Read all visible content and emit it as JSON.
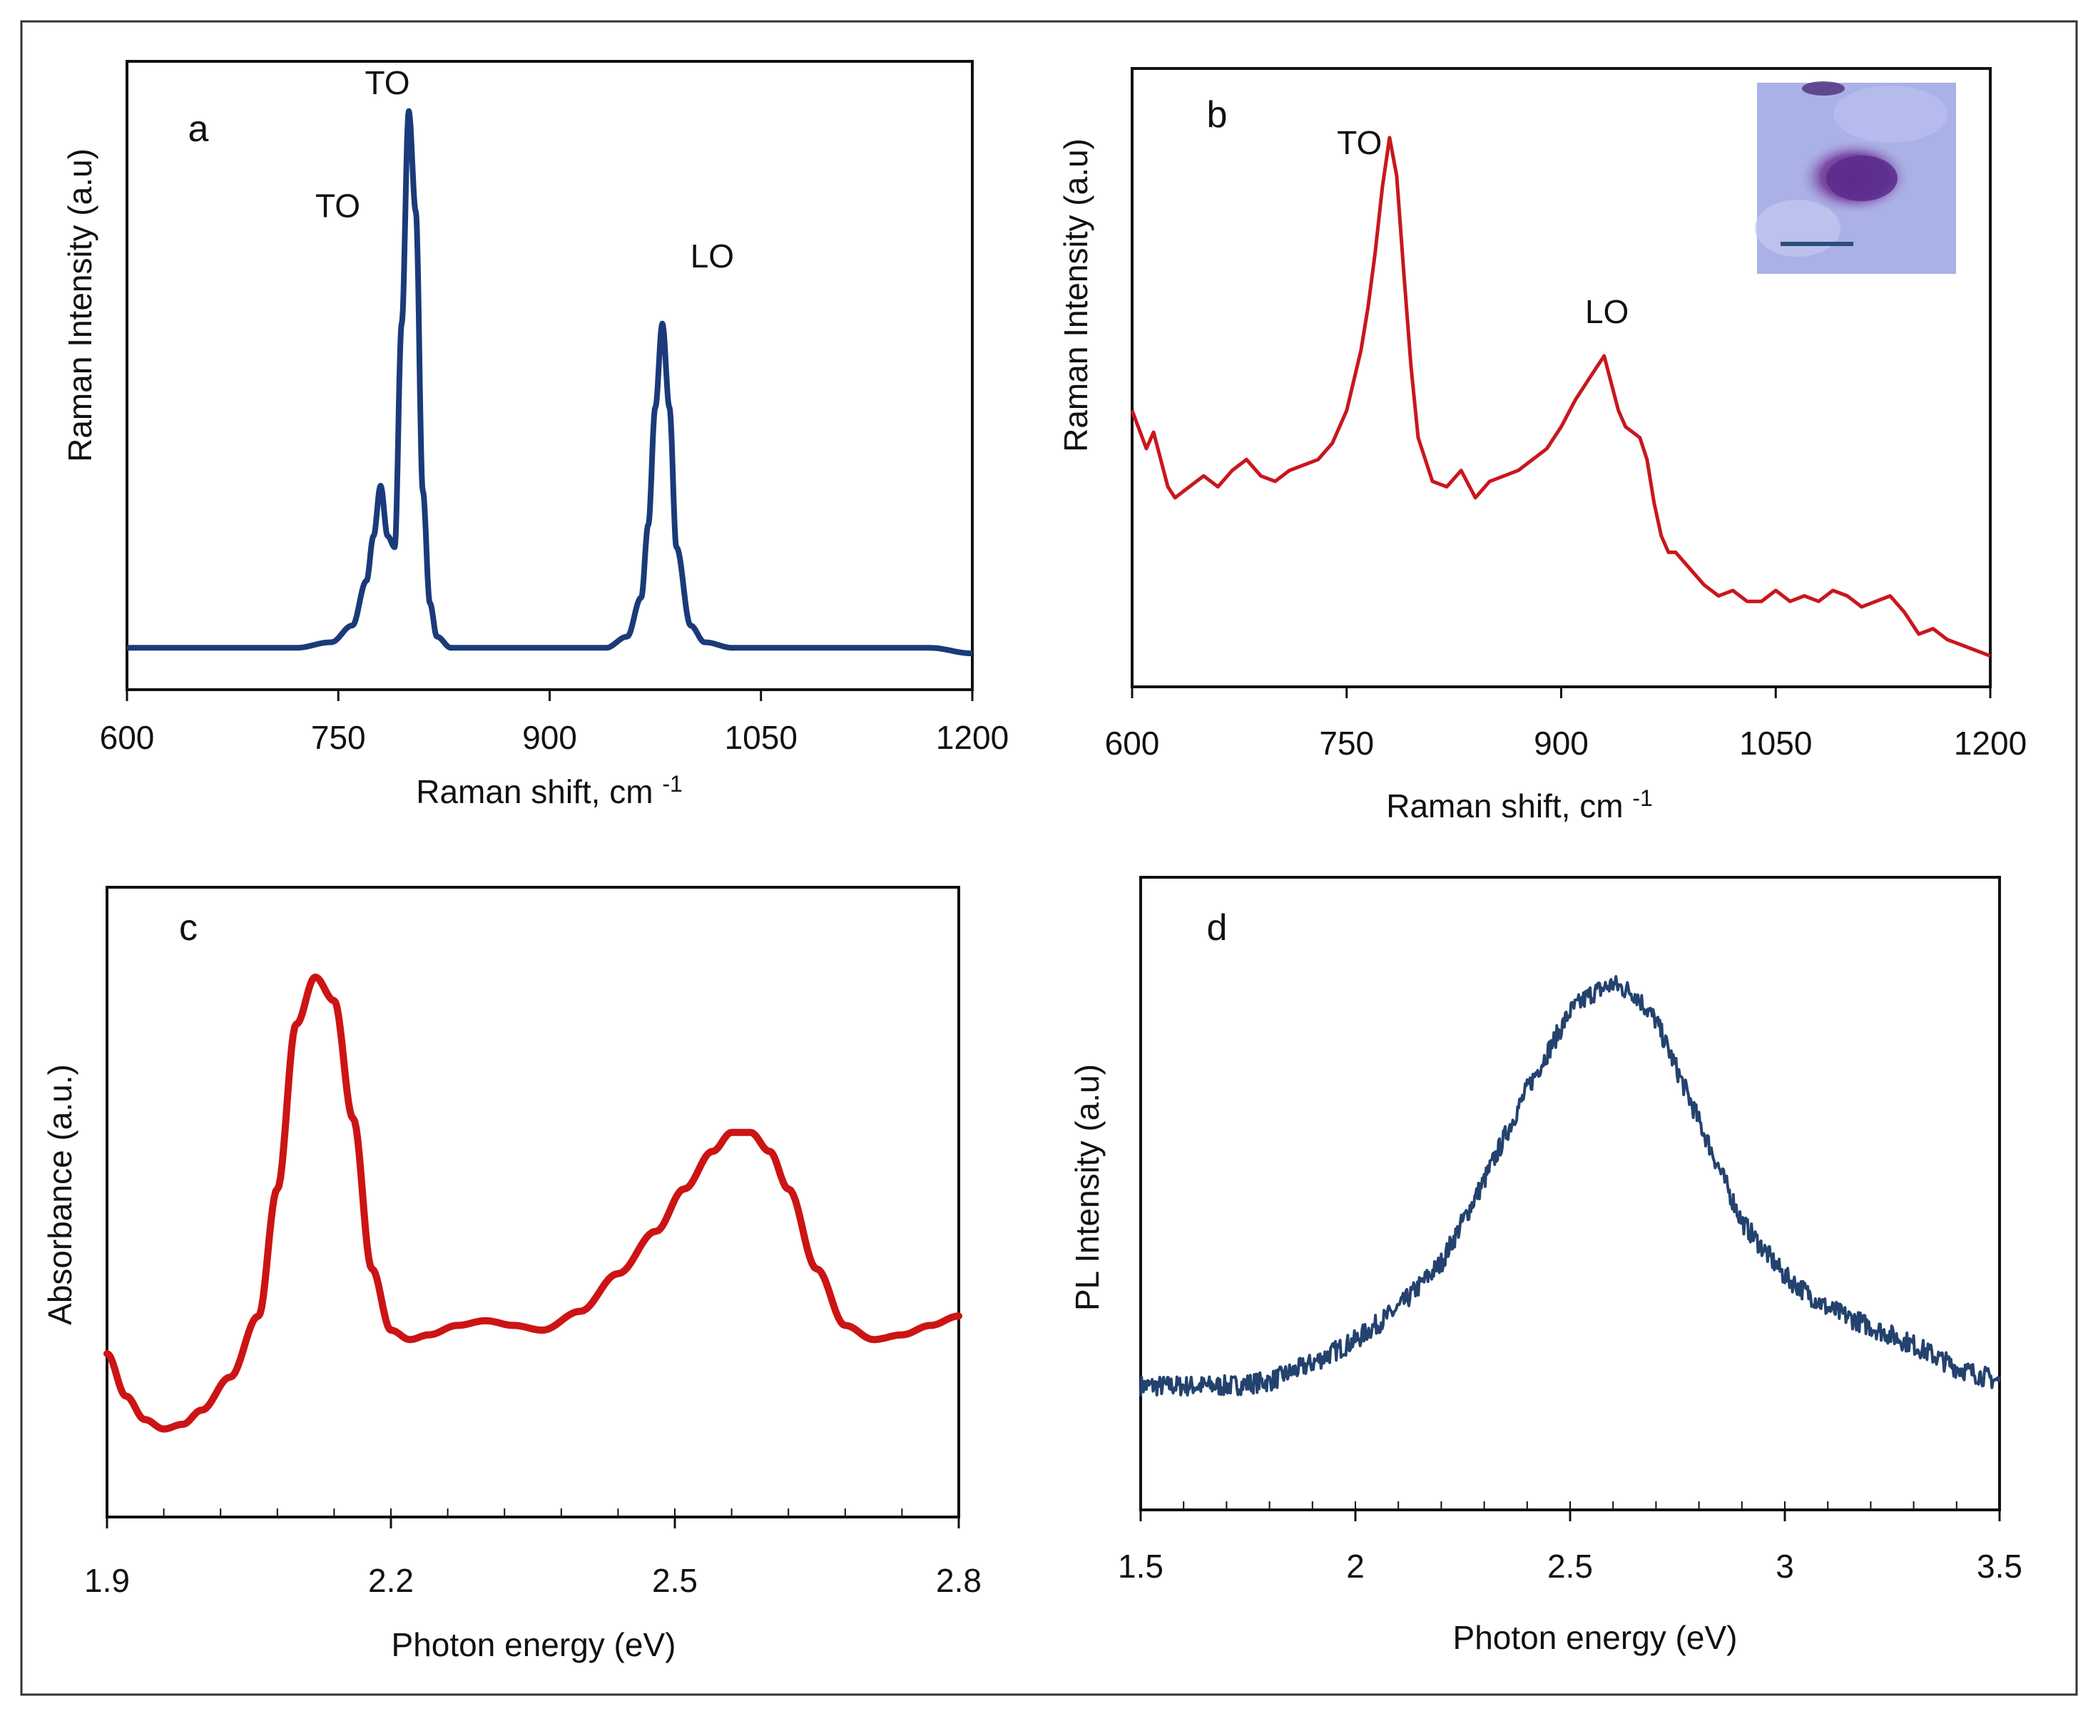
{
  "chart_data": [
    {
      "id": "a",
      "type": "line",
      "panel_label": "a",
      "xlabel": "Raman shift, cm ",
      "xlabel_sup": "-1",
      "ylabel": "Raman Intensity (a.u)",
      "xlim": [
        600,
        1200
      ],
      "ylim": [
        0,
        1
      ],
      "xticks": [
        "600",
        "750",
        "900",
        "1050",
        "1200"
      ],
      "xtick_values": [
        600,
        750,
        900,
        1050,
        1200
      ],
      "minor_ticks": false,
      "color": "#1b3a7a",
      "annotations": [
        {
          "text": "TO",
          "x": 780,
          "y": 0.79
        },
        {
          "text": "TO",
          "x": 800,
          "y": 1.01
        },
        {
          "text": "LO",
          "x": 985,
          "y": 0.7
        }
      ],
      "series": [
        {
          "name": "Raman a",
          "x": [
            600,
            640,
            680,
            720,
            745,
            760,
            770,
            775,
            780,
            785,
            790,
            795,
            800,
            805,
            810,
            815,
            820,
            830,
            850,
            880,
            910,
            940,
            955,
            965,
            970,
            975,
            980,
            985,
            990,
            1000,
            1010,
            1030,
            1070,
            1110,
            1140,
            1170,
            1200
          ],
          "y": [
            0.02,
            0.02,
            0.02,
            0.02,
            0.03,
            0.06,
            0.14,
            0.22,
            0.31,
            0.22,
            0.2,
            0.6,
            0.98,
            0.8,
            0.3,
            0.1,
            0.04,
            0.02,
            0.02,
            0.02,
            0.02,
            0.02,
            0.04,
            0.11,
            0.24,
            0.45,
            0.6,
            0.45,
            0.2,
            0.06,
            0.03,
            0.02,
            0.02,
            0.02,
            0.02,
            0.02,
            0.01
          ]
        }
      ]
    },
    {
      "id": "b",
      "type": "line",
      "panel_label": "b",
      "xlabel": "Raman shift, cm ",
      "xlabel_sup": "-1",
      "ylabel": "Raman Intensity (a.u)",
      "xlim": [
        600,
        1200
      ],
      "ylim": [
        0,
        1
      ],
      "xticks": [
        "600",
        "750",
        "900",
        "1050",
        "1200"
      ],
      "xtick_values": [
        600,
        750,
        900,
        1050,
        1200
      ],
      "minor_ticks": false,
      "color": "#c8171e",
      "annotations": [
        {
          "text": "TO",
          "x": 764,
          "y": 0.94
        },
        {
          "text": "LO",
          "x": 932,
          "y": 0.63
        }
      ],
      "series": [
        {
          "name": "Raman b",
          "x": [
            600,
            610,
            615,
            620,
            625,
            630,
            640,
            650,
            660,
            670,
            680,
            690,
            700,
            710,
            720,
            730,
            740,
            750,
            760,
            765,
            770,
            775,
            780,
            785,
            790,
            795,
            800,
            810,
            820,
            830,
            840,
            850,
            860,
            870,
            880,
            890,
            900,
            910,
            920,
            925,
            930,
            935,
            940,
            945,
            950,
            955,
            960,
            965,
            970,
            975,
            980,
            990,
            1000,
            1010,
            1020,
            1030,
            1040,
            1050,
            1060,
            1070,
            1080,
            1090,
            1100,
            1110,
            1120,
            1130,
            1140,
            1150,
            1160,
            1170,
            1180,
            1190,
            1200
          ],
          "y": [
            0.47,
            0.4,
            0.43,
            0.38,
            0.33,
            0.31,
            0.33,
            0.35,
            0.33,
            0.36,
            0.38,
            0.35,
            0.34,
            0.36,
            0.37,
            0.38,
            0.41,
            0.47,
            0.58,
            0.66,
            0.76,
            0.88,
            0.97,
            0.9,
            0.72,
            0.55,
            0.42,
            0.34,
            0.33,
            0.36,
            0.31,
            0.34,
            0.35,
            0.36,
            0.38,
            0.4,
            0.44,
            0.49,
            0.53,
            0.55,
            0.57,
            0.52,
            0.47,
            0.44,
            0.43,
            0.42,
            0.38,
            0.3,
            0.24,
            0.21,
            0.21,
            0.18,
            0.15,
            0.13,
            0.14,
            0.12,
            0.12,
            0.14,
            0.12,
            0.13,
            0.12,
            0.14,
            0.13,
            0.11,
            0.12,
            0.13,
            0.1,
            0.06,
            0.07,
            0.05,
            0.04,
            0.03,
            0.02
          ]
        }
      ]
    },
    {
      "id": "c",
      "type": "line",
      "panel_label": "c",
      "xlabel": "Photon energy (eV)",
      "xlabel_sup": "",
      "ylabel": "Absorbance (a.u.)",
      "xlim": [
        1.9,
        2.8
      ],
      "ylim": [
        0,
        1
      ],
      "xticks": [
        "1.9",
        "2.2",
        "2.5",
        "2.8"
      ],
      "xtick_values": [
        1.9,
        2.2,
        2.5,
        2.8
      ],
      "minor_ticks": true,
      "color": "#cc1414",
      "annotations": [],
      "series": [
        {
          "name": "Absorbance",
          "x": [
            1.9,
            1.92,
            1.94,
            1.96,
            1.98,
            2.0,
            2.03,
            2.06,
            2.08,
            2.1,
            2.12,
            2.14,
            2.16,
            2.18,
            2.2,
            2.22,
            2.24,
            2.27,
            2.3,
            2.33,
            2.36,
            2.4,
            2.44,
            2.48,
            2.51,
            2.54,
            2.56,
            2.58,
            2.6,
            2.62,
            2.65,
            2.68,
            2.71,
            2.74,
            2.77,
            2.8
          ],
          "y": [
            0.2,
            0.11,
            0.06,
            0.04,
            0.05,
            0.08,
            0.15,
            0.28,
            0.55,
            0.9,
            1.0,
            0.95,
            0.7,
            0.38,
            0.25,
            0.23,
            0.24,
            0.26,
            0.27,
            0.26,
            0.25,
            0.29,
            0.37,
            0.46,
            0.55,
            0.63,
            0.67,
            0.67,
            0.63,
            0.55,
            0.38,
            0.26,
            0.23,
            0.24,
            0.26,
            0.28
          ]
        }
      ]
    },
    {
      "id": "d",
      "type": "line",
      "panel_label": "d",
      "xlabel": "Photon energy (eV)",
      "xlabel_sup": "",
      "ylabel": "PL Intensity (a.u)",
      "xlim": [
        1.5,
        3.5
      ],
      "ylim": [
        0,
        1
      ],
      "xticks": [
        "1.5",
        "2",
        "2.5",
        "3",
        "3.5"
      ],
      "xtick_values": [
        1.5,
        2.0,
        2.5,
        3.0,
        3.5
      ],
      "minor_ticks": true,
      "color": "#24426e",
      "annotations": [],
      "series": [
        {
          "name": "PL",
          "x": [
            1.5,
            1.6,
            1.7,
            1.8,
            1.9,
            2.0,
            2.1,
            2.2,
            2.3,
            2.4,
            2.5,
            2.55,
            2.6,
            2.65,
            2.7,
            2.8,
            2.9,
            3.0,
            3.1,
            3.2,
            3.3,
            3.4,
            3.5
          ],
          "y": [
            0.12,
            0.12,
            0.12,
            0.13,
            0.17,
            0.22,
            0.29,
            0.39,
            0.57,
            0.77,
            0.94,
            0.98,
            1.0,
            0.98,
            0.92,
            0.7,
            0.48,
            0.36,
            0.29,
            0.25,
            0.21,
            0.16,
            0.13
          ]
        }
      ]
    }
  ]
}
